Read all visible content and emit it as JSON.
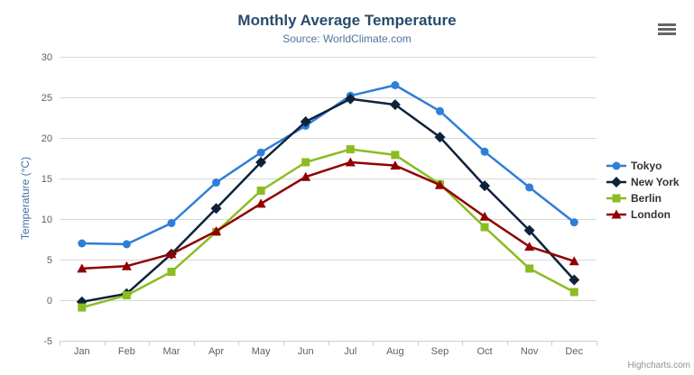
{
  "chart": {
    "title": "Monthly Average Temperature",
    "subtitle": "Source: WorldClimate.com",
    "yaxis_title": "Temperature (°C)",
    "credits": "Highcharts.com"
  },
  "export_menu": {
    "icon": "hamburger-icon"
  },
  "colors": {
    "title": "#274b6d",
    "subtitle": "#4d759e",
    "axis_title": "#4572a7",
    "tick_label": "#606060",
    "grid_line": "#d8d8d8",
    "axis_line": "#c0d0e0",
    "legend_text": "#333333",
    "credits_text": "#909090",
    "tokyo": "#2f7ed8",
    "new_york": "#0d233a",
    "berlin": "#8bbc21",
    "london": "#910000"
  },
  "chart_data": {
    "type": "line",
    "title": "Monthly Average Temperature",
    "subtitle": "Source: WorldClimate.com",
    "xlabel": "",
    "ylabel": "Temperature (°C)",
    "categories": [
      "Jan",
      "Feb",
      "Mar",
      "Apr",
      "May",
      "Jun",
      "Jul",
      "Aug",
      "Sep",
      "Oct",
      "Nov",
      "Dec"
    ],
    "ylim": [
      -5,
      30
    ],
    "ytick_interval": 5,
    "grid": true,
    "legend_position": "right",
    "series": [
      {
        "name": "Tokyo",
        "color": "#2f7ed8",
        "symbol": "circle",
        "values": [
          7.0,
          6.9,
          9.5,
          14.5,
          18.2,
          21.5,
          25.2,
          26.5,
          23.3,
          18.3,
          13.9,
          9.6
        ]
      },
      {
        "name": "New York",
        "color": "#0d233a",
        "symbol": "diamond",
        "values": [
          -0.2,
          0.8,
          5.7,
          11.3,
          17.0,
          22.0,
          24.8,
          24.1,
          20.1,
          14.1,
          8.6,
          2.5
        ]
      },
      {
        "name": "Berlin",
        "color": "#8bbc21",
        "symbol": "square",
        "values": [
          -0.9,
          0.6,
          3.5,
          8.4,
          13.5,
          17.0,
          18.6,
          17.9,
          14.3,
          9.0,
          3.9,
          1.0
        ]
      },
      {
        "name": "London",
        "color": "#910000",
        "symbol": "triangle",
        "values": [
          3.9,
          4.2,
          5.7,
          8.5,
          11.9,
          15.2,
          17.0,
          16.6,
          14.2,
          10.3,
          6.6,
          4.8
        ]
      }
    ]
  }
}
